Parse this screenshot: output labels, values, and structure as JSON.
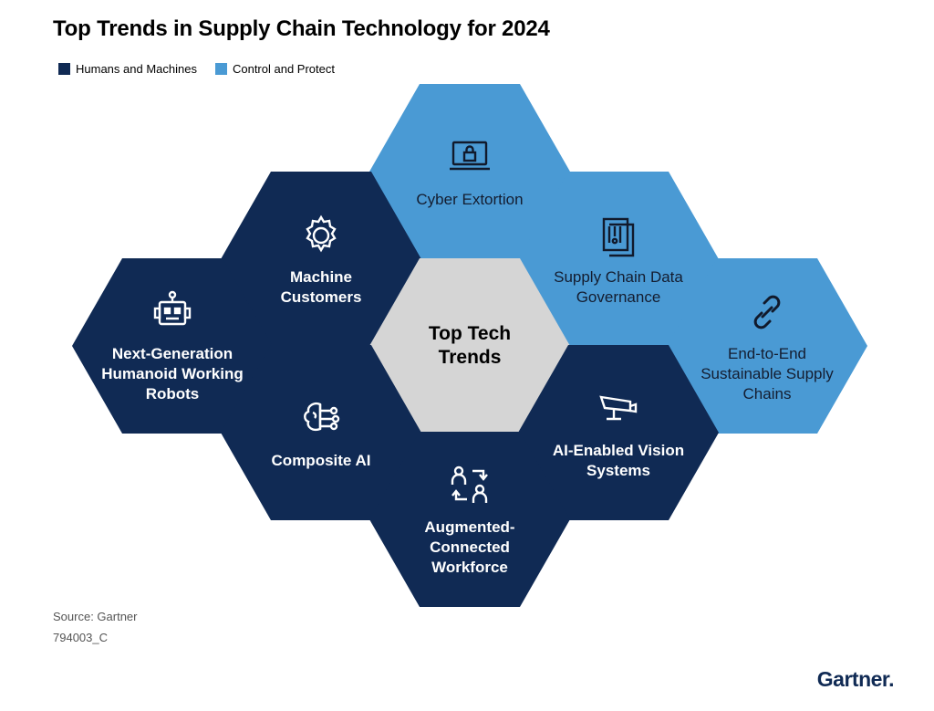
{
  "title": "Top Trends in Supply Chain Technology for 2024",
  "legend": [
    {
      "label": "Humans and Machines",
      "color": "#102a54"
    },
    {
      "label": "Control and Protect",
      "color": "#4a9ad4"
    }
  ],
  "center": {
    "label": "Top Tech Trends"
  },
  "trends": {
    "cyber_extortion": {
      "label": "Cyber Extortion",
      "icon": "laptop-lock-icon",
      "category": "Control and Protect"
    },
    "data_governance": {
      "label": "Supply Chain Data Governance",
      "icon": "document-stack-icon",
      "category": "Control and Protect"
    },
    "sustainable": {
      "label": "End-to-End Sustainable Supply Chains",
      "icon": "chain-link-icon",
      "category": "Control and Protect"
    },
    "machine_customers": {
      "label": "Machine Customers",
      "icon": "gear-icon",
      "category": "Humans and Machines"
    },
    "humanoid_robots": {
      "label": "Next-Generation Humanoid Working Robots",
      "icon": "robot-icon",
      "category": "Humans and Machines"
    },
    "composite_ai": {
      "label": "Composite AI",
      "icon": "brain-network-icon",
      "category": "Humans and Machines"
    },
    "vision_systems": {
      "label": "AI-Enabled Vision Systems",
      "icon": "camera-icon",
      "category": "Humans and Machines"
    },
    "connected_workforce": {
      "label": "Augmented-Connected Workforce",
      "icon": "people-exchange-icon",
      "category": "Humans and Machines"
    }
  },
  "footer": {
    "source": "Source: Gartner",
    "code": "794003_C",
    "brand": "Gartner."
  }
}
